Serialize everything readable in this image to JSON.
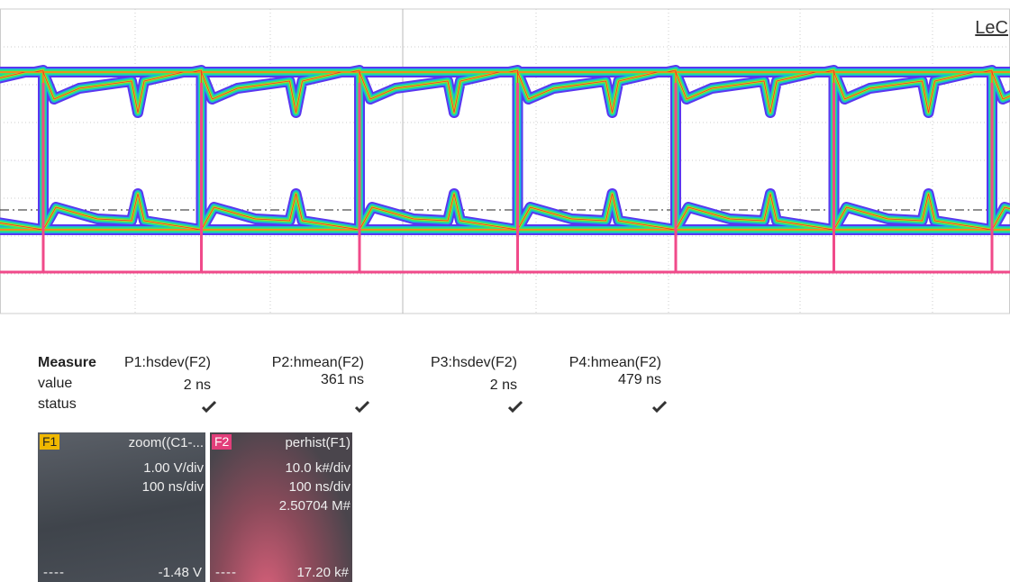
{
  "logo": "LeC",
  "measure": {
    "header": "Measure",
    "columns": [
      "P1:hsdev(F2)",
      "P2:hmean(F2)",
      "P3:hsdev(F2)",
      "P4:hmean(F2)"
    ],
    "rows": [
      {
        "label": "value",
        "cells": [
          "2 ns",
          "361 ns",
          "2 ns",
          "479 ns"
        ]
      },
      {
        "label": "status"
      }
    ]
  },
  "traces": [
    {
      "badge": "F1",
      "name": "zoom((C1-...",
      "lines": [
        "1.00 V/div",
        "100 ns/div"
      ],
      "footer_left": "----",
      "footer_right": "-1.48 V"
    },
    {
      "badge": "F2",
      "name": "perhist(F1)",
      "lines": [
        "10.0 k#/div",
        "100 ns/div",
        "2.50704 M#"
      ],
      "footer_left": "----",
      "footer_right": "17.20 k#"
    }
  ]
}
